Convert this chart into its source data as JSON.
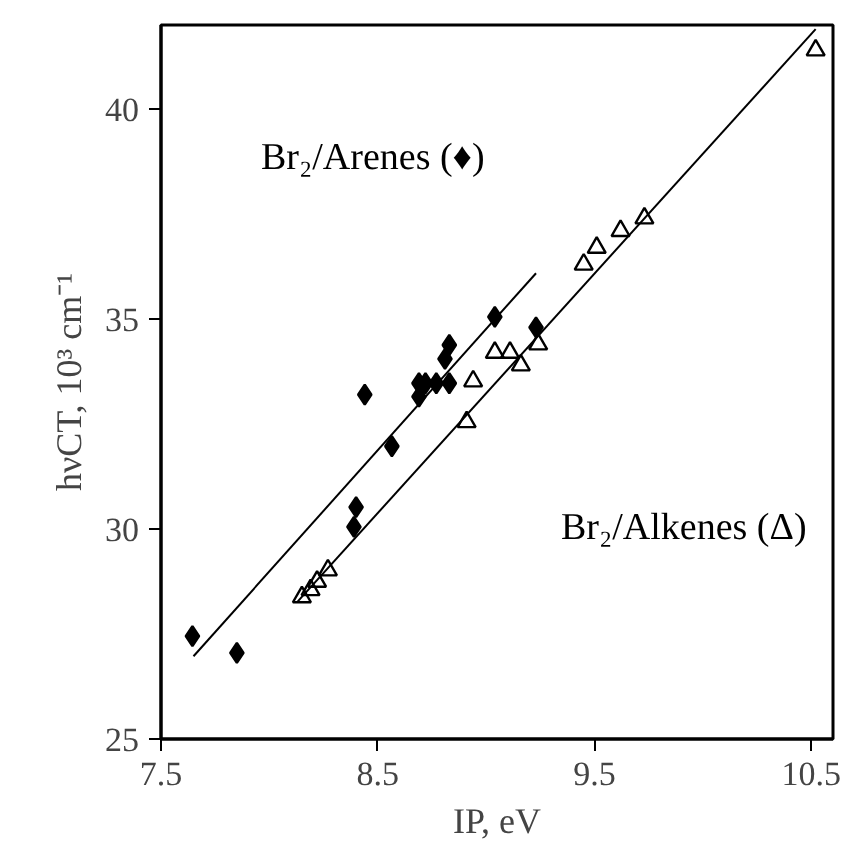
{
  "chart_data": {
    "type": "scatter",
    "xlabel": "IP, eV",
    "ylabel": "hνCT, 10³ cm⁻¹",
    "xlim": [
      7.5,
      10.6
    ],
    "ylim": [
      25,
      42
    ],
    "xticks": [
      7.5,
      8.5,
      9.5,
      10.5
    ],
    "yticks": [
      25,
      30,
      35,
      40
    ],
    "grid": false,
    "annotations": [
      "Br₂/Arenes (♦)",
      "Br₂/Alkenes (Δ)"
    ],
    "series": [
      {
        "color": "#000000",
        "marker": "diamond",
        "x": [
          7.645,
          7.85,
          8.44,
          8.565,
          8.4,
          8.39,
          8.69,
          8.69,
          8.72,
          8.77,
          8.83,
          8.81,
          8.83,
          9.04,
          9.23
        ],
        "values": [
          27.45,
          27.05,
          33.2,
          31.97,
          30.52,
          30.05,
          33.47,
          33.15,
          33.47,
          33.47,
          33.47,
          34.05,
          34.38,
          35.05,
          34.8
        ]
      },
      {
        "color": "#000000",
        "marker": "triangle",
        "x": [
          8.15,
          8.19,
          8.22,
          8.27,
          8.91,
          8.94,
          9.04,
          9.11,
          9.16,
          9.24,
          9.45,
          9.51,
          9.62,
          9.73,
          10.52
        ],
        "values": [
          28.38,
          28.55,
          28.75,
          29.02,
          32.55,
          33.52,
          34.2,
          34.2,
          33.9,
          34.4,
          36.3,
          36.7,
          37.1,
          37.4,
          41.4
        ]
      },
      {
        "type": "line",
        "color": "#000000",
        "x": [
          7.65,
          9.23
        ],
        "values": [
          26.97,
          36.09
        ]
      },
      {
        "type": "line",
        "color": "#000000",
        "x": [
          8.13,
          10.52
        ],
        "values": [
          28.27,
          41.9
        ]
      }
    ]
  }
}
